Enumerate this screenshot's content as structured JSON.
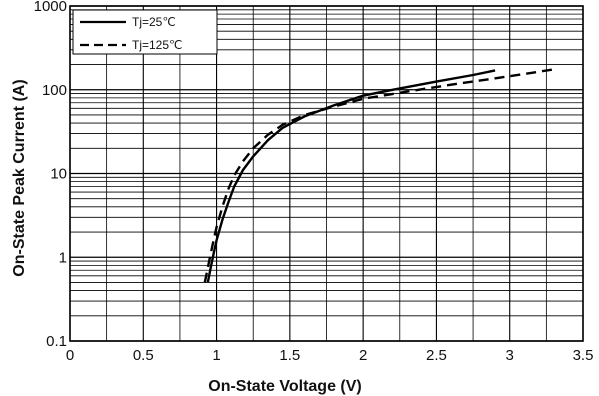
{
  "chart_data": {
    "type": "line",
    "title": "",
    "xlabel": "On-State Voltage (V)",
    "ylabel": "On-State Peak Current (A)",
    "xlim": [
      0,
      3.5
    ],
    "ylim": [
      0.1,
      1000
    ],
    "yscale": "log",
    "grid": true,
    "legend_position": "top-left",
    "x_ticks": [
      0,
      0.5,
      1,
      1.5,
      2,
      2.5,
      3,
      3.5
    ],
    "x_tick_labels": [
      "0",
      "0.5",
      "1",
      "1.5",
      "2",
      "2.5",
      "3",
      "3.5"
    ],
    "y_ticks": [
      0.1,
      1,
      10,
      100,
      1000
    ],
    "y_tick_labels": [
      "0.1",
      "1",
      "10",
      "100",
      "1000"
    ],
    "series": [
      {
        "name": "Tj=25℃",
        "style": "solid",
        "color": "#000000",
        "x": [
          0.94,
          0.96,
          0.98,
          1.0,
          1.04,
          1.08,
          1.12,
          1.18,
          1.25,
          1.35,
          1.45,
          1.6,
          1.8,
          2.0,
          2.2,
          2.5,
          2.75,
          2.9
        ],
        "y": [
          0.5,
          0.75,
          1.1,
          1.6,
          2.8,
          4.5,
          7,
          11,
          16,
          25,
          35,
          48,
          65,
          85,
          100,
          125,
          150,
          170
        ]
      },
      {
        "name": "Tj=125℃",
        "style": "dashed",
        "color": "#000000",
        "x": [
          0.92,
          0.94,
          0.96,
          0.98,
          1.0,
          1.04,
          1.08,
          1.12,
          1.18,
          1.25,
          1.35,
          1.45,
          1.6,
          1.8,
          2.0,
          2.3,
          2.6,
          3.0,
          3.3
        ],
        "y": [
          0.5,
          0.75,
          1.1,
          1.6,
          2.3,
          4,
          6.5,
          9.5,
          14,
          20,
          29,
          38,
          50,
          63,
          78,
          95,
          115,
          145,
          175
        ]
      }
    ]
  }
}
